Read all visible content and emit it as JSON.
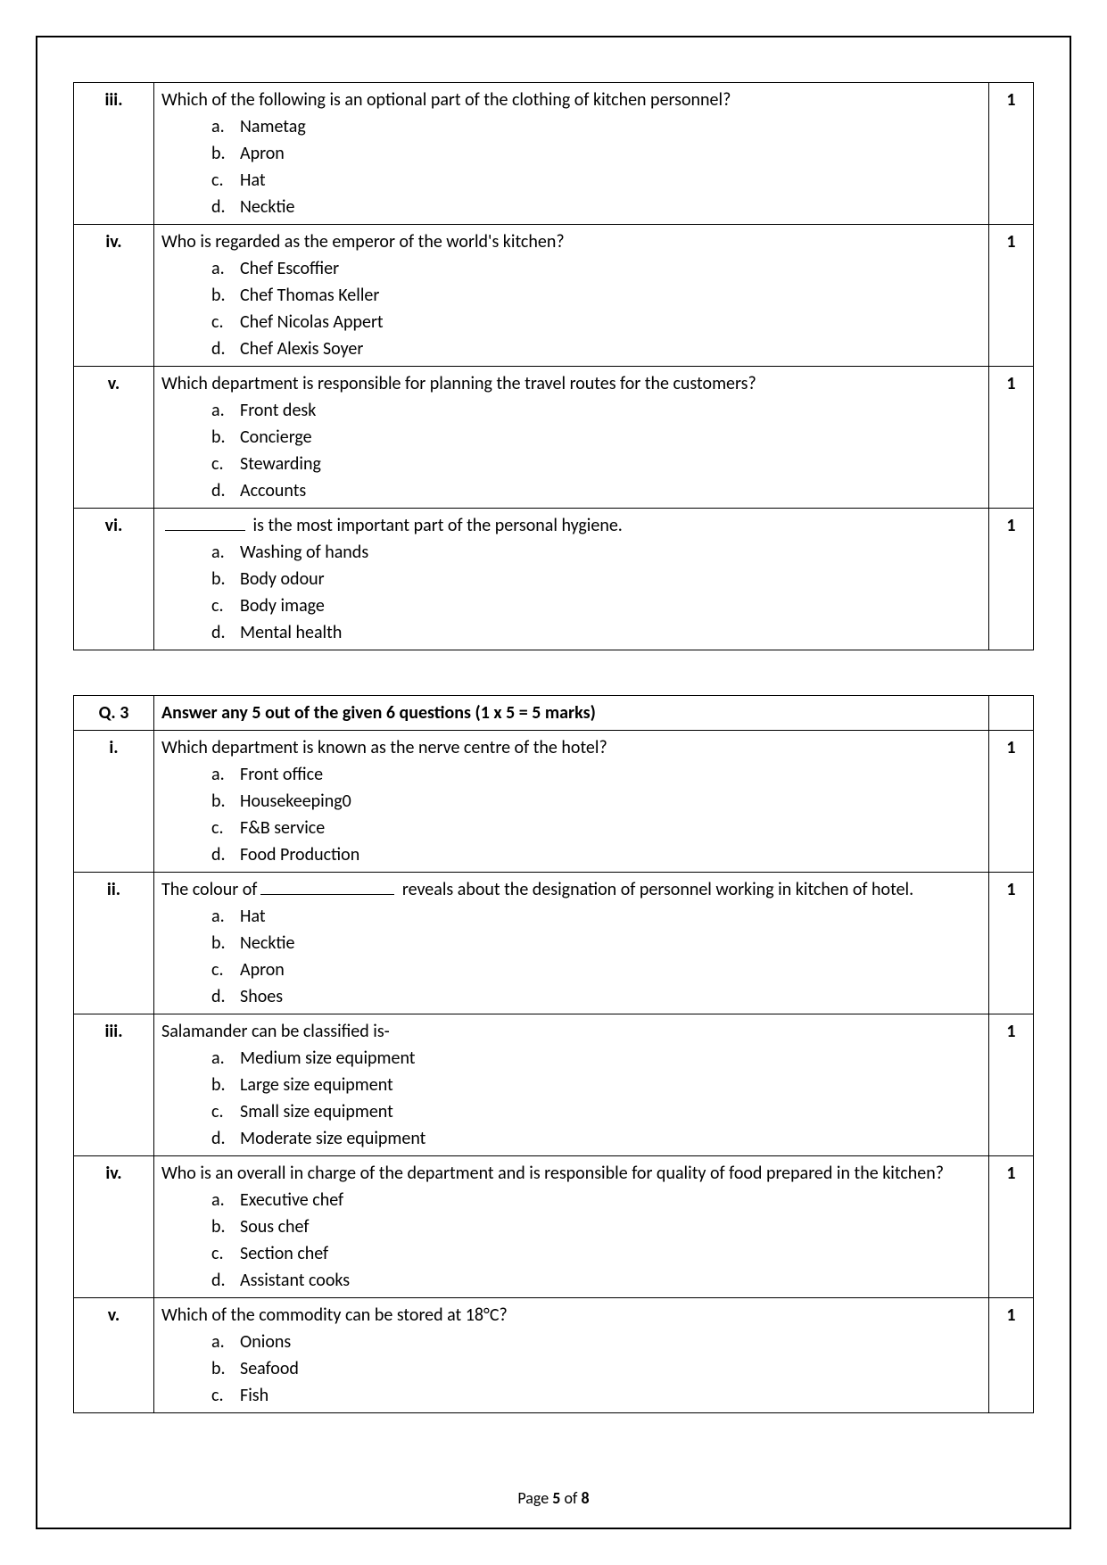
{
  "table1": {
    "rows": [
      {
        "num": "iii.",
        "mark": "1",
        "text_before": "Which of the following is an optional part of the clothing of kitchen personnel?",
        "blank": false,
        "text_after": "",
        "opts": [
          "Nametag",
          "Apron",
          "Hat",
          "Necktie"
        ]
      },
      {
        "num": "iv.",
        "mark": "1",
        "text_before": "Who is regarded as the emperor of the world's kitchen?",
        "blank": false,
        "text_after": "",
        "opts": [
          "Chef Escoffier",
          "Chef Thomas Keller",
          "Chef Nicolas Appert",
          "Chef Alexis Soyer"
        ]
      },
      {
        "num": "v.",
        "mark": "1",
        "text_before": "Which department is responsible for planning the travel routes for the customers?",
        "blank": false,
        "text_after": "",
        "opts": [
          "Front desk",
          "Concierge",
          "Stewarding",
          "Accounts"
        ]
      },
      {
        "num": "vi.",
        "mark": "1",
        "text_before": "",
        "blank": true,
        "blank_class": "short",
        "text_after": " is the most important part of the personal hygiene.",
        "opts": [
          "Washing of hands",
          "Body odour",
          "Body image",
          "Mental health"
        ]
      }
    ]
  },
  "table2": {
    "header": {
      "num": "Q. 3",
      "text": "Answer any 5 out of the given 6 questions (1 x 5 = 5 marks)",
      "mark": ""
    },
    "rows": [
      {
        "num": "i.",
        "mark": "1",
        "text_before": "Which department is known as the nerve centre of the hotel?",
        "blank": false,
        "text_after": "",
        "opts": [
          "Front office",
          "Housekeeping0",
          "F&B service",
          "Food Production"
        ]
      },
      {
        "num": "ii.",
        "mark": "1",
        "text_before": "The colour of",
        "blank": true,
        "blank_class": "",
        "text_after": " reveals about the designation of personnel working in kitchen of hotel.",
        "opts": [
          "Hat",
          "Necktie",
          "Apron",
          "Shoes"
        ]
      },
      {
        "num": "iii.",
        "mark": "1",
        "text_before": "Salamander can be classified is-",
        "blank": false,
        "text_after": "",
        "opts": [
          "Medium size equipment",
          "Large size equipment",
          "Small size equipment",
          "Moderate size equipment"
        ]
      },
      {
        "num": "iv.",
        "mark": "1",
        "text_before": "Who is an overall in charge of the department and is responsible for quality of food prepared in the kitchen?",
        "blank": false,
        "text_after": "",
        "opts": [
          "Executive chef",
          "Sous chef",
          "Section chef",
          "Assistant cooks"
        ]
      },
      {
        "num": "v.",
        "mark": "1",
        "text_before": "Which of the commodity can be stored at 18°C?",
        "blank": false,
        "text_after": "",
        "opts": [
          "Onions",
          "Seafood",
          "Fish"
        ]
      }
    ]
  },
  "footer": {
    "prefix": "Page ",
    "current": "5",
    "of": " of ",
    "total": "8"
  },
  "option_labels": [
    "a.",
    "b.",
    "c.",
    "d."
  ]
}
